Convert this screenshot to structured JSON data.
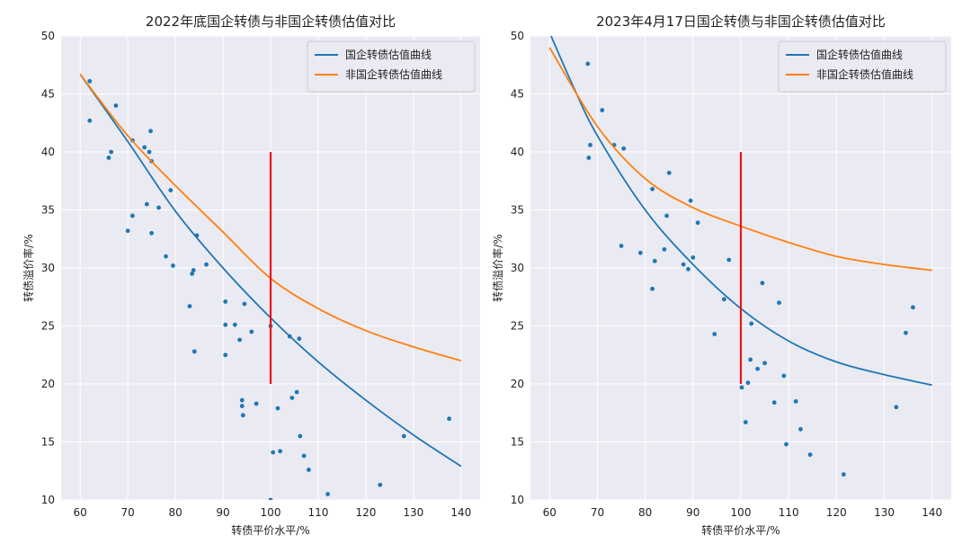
{
  "chart_data": [
    {
      "type": "scatter",
      "title": "2022年底国企转债与非国企转债估值对比",
      "xlabel": "转债平价水平/%",
      "ylabel": "转债溢价率/%",
      "xlim": [
        56,
        144
      ],
      "ylim": [
        10,
        50
      ],
      "xticks": [
        60,
        70,
        80,
        90,
        100,
        110,
        120,
        130,
        140
      ],
      "yticks": [
        10,
        15,
        20,
        25,
        30,
        35,
        40,
        45,
        50
      ],
      "grid": true,
      "legend_position": "top-right",
      "series": [
        {
          "name": "国企转债估值曲线",
          "type": "line",
          "color": "#1f77b4",
          "points": [
            [
              60,
              46.7
            ],
            [
              70,
              40.9
            ],
            [
              80,
              34.9
            ],
            [
              90,
              30.0
            ],
            [
              100,
              25.7
            ],
            [
              110,
              21.9
            ],
            [
              120,
              18.6
            ],
            [
              130,
              15.6
            ],
            [
              140,
              12.9
            ]
          ]
        },
        {
          "name": "非国企转债估值曲线",
          "type": "line",
          "color": "#ff7f0e",
          "points": [
            [
              60,
              46.7
            ],
            [
              70,
              41.4
            ],
            [
              80,
              37.1
            ],
            [
              90,
              33.1
            ],
            [
              100,
              29.1
            ],
            [
              110,
              26.5
            ],
            [
              120,
              24.6
            ],
            [
              130,
              23.2
            ],
            [
              140,
              22.0
            ]
          ]
        },
        {
          "type": "line",
          "color": "#e8171b",
          "points": [
            [
              100,
              20
            ],
            [
              100,
              40
            ]
          ]
        },
        {
          "type": "scatter",
          "color": "#1f77b4",
          "points": [
            [
              62,
              46.1
            ],
            [
              62,
              42.7
            ],
            [
              67.5,
              44.0
            ],
            [
              66,
              39.5
            ],
            [
              66.5,
              40.0
            ],
            [
              71,
              41.0
            ],
            [
              73.5,
              40.4
            ],
            [
              74.5,
              40.0
            ],
            [
              74.8,
              41.8
            ],
            [
              75,
              39.2
            ],
            [
              70,
              33.2
            ],
            [
              71,
              34.5
            ],
            [
              74,
              35.5
            ],
            [
              75,
              33.0
            ],
            [
              76.5,
              35.2
            ],
            [
              78,
              31.0
            ],
            [
              79,
              36.7
            ],
            [
              79.5,
              30.2
            ],
            [
              83,
              26.7
            ],
            [
              83.5,
              29.5
            ],
            [
              83.8,
              29.8
            ],
            [
              84,
              22.8
            ],
            [
              84.5,
              32.8
            ],
            [
              86.5,
              30.3
            ],
            [
              90.5,
              27.1
            ],
            [
              90.5,
              25.1
            ],
            [
              90.5,
              22.5
            ],
            [
              92.5,
              25.1
            ],
            [
              93.5,
              23.8
            ],
            [
              94.5,
              26.9
            ],
            [
              94,
              18.6
            ],
            [
              94,
              18.1
            ],
            [
              94.2,
              17.3
            ],
            [
              96,
              24.5
            ],
            [
              97,
              18.3
            ],
            [
              100,
              25.0
            ],
            [
              100,
              10.0
            ],
            [
              100.5,
              14.1
            ],
            [
              101.5,
              17.9
            ],
            [
              102,
              14.2
            ],
            [
              104,
              24.1
            ],
            [
              104.5,
              18.8
            ],
            [
              105.5,
              19.3
            ],
            [
              106,
              23.9
            ],
            [
              106.2,
              15.5
            ],
            [
              107,
              13.8
            ],
            [
              108,
              12.6
            ],
            [
              112,
              10.5
            ],
            [
              123,
              11.3
            ],
            [
              128,
              15.5
            ],
            [
              137.5,
              17.0
            ]
          ]
        }
      ]
    },
    {
      "type": "scatter",
      "title": "2023年4月17日国企转债与非国企转债估值对比",
      "xlabel": "转债平价水平/%",
      "ylabel": "转债溢价率/%",
      "xlim": [
        56,
        144
      ],
      "ylim": [
        10,
        50
      ],
      "xticks": [
        60,
        70,
        80,
        90,
        100,
        110,
        120,
        130,
        140
      ],
      "yticks": [
        10,
        15,
        20,
        25,
        30,
        35,
        40,
        45,
        50
      ],
      "grid": true,
      "legend_position": "top-right",
      "series": [
        {
          "name": "国企转债估值曲线",
          "type": "line",
          "color": "#1f77b4",
          "points": [
            [
              60,
              50.3
            ],
            [
              65,
              45.6
            ],
            [
              70,
              41.4
            ],
            [
              80,
              35.0
            ],
            [
              90,
              30.3
            ],
            [
              100,
              26.5
            ],
            [
              110,
              23.7
            ],
            [
              120,
              21.9
            ],
            [
              130,
              20.8
            ],
            [
              140,
              19.9
            ]
          ]
        },
        {
          "name": "非国企转债估值曲线",
          "type": "line",
          "color": "#ff7f0e",
          "points": [
            [
              60,
              49.0
            ],
            [
              70,
              42.2
            ],
            [
              80,
              37.7
            ],
            [
              90,
              35.2
            ],
            [
              100,
              33.6
            ],
            [
              110,
              32.2
            ],
            [
              120,
              31.0
            ],
            [
              130,
              30.3
            ],
            [
              140,
              29.8
            ]
          ]
        },
        {
          "type": "line",
          "color": "#e8171b",
          "points": [
            [
              100,
              20
            ],
            [
              100,
              40
            ]
          ]
        },
        {
          "type": "scatter",
          "color": "#1f77b4",
          "points": [
            [
              68,
              47.6
            ],
            [
              68.2,
              39.5
            ],
            [
              68.5,
              40.6
            ],
            [
              71,
              43.6
            ],
            [
              73.5,
              40.6
            ],
            [
              75.5,
              40.3
            ],
            [
              75,
              31.9
            ],
            [
              79,
              31.3
            ],
            [
              81.5,
              36.8
            ],
            [
              81.5,
              28.2
            ],
            [
              82,
              30.6
            ],
            [
              84,
              31.6
            ],
            [
              84.5,
              34.5
            ],
            [
              85,
              38.2
            ],
            [
              88,
              30.3
            ],
            [
              89,
              29.9
            ],
            [
              89.5,
              35.8
            ],
            [
              90,
              30.9
            ],
            [
              91,
              33.9
            ],
            [
              94.5,
              24.3
            ],
            [
              96.5,
              27.3
            ],
            [
              97.5,
              30.7
            ],
            [
              100.2,
              19.7
            ],
            [
              101,
              16.7
            ],
            [
              101.5,
              20.1
            ],
            [
              102,
              22.1
            ],
            [
              102.2,
              25.2
            ],
            [
              103.5,
              21.3
            ],
            [
              104.5,
              28.7
            ],
            [
              105,
              21.8
            ],
            [
              107,
              18.4
            ],
            [
              108,
              27.0
            ],
            [
              109,
              20.7
            ],
            [
              109.5,
              14.8
            ],
            [
              111.5,
              18.5
            ],
            [
              112.5,
              16.1
            ],
            [
              114.5,
              13.9
            ],
            [
              121.5,
              12.2
            ],
            [
              132.5,
              18.0
            ],
            [
              134.5,
              24.4
            ],
            [
              136,
              26.6
            ]
          ]
        }
      ]
    }
  ]
}
